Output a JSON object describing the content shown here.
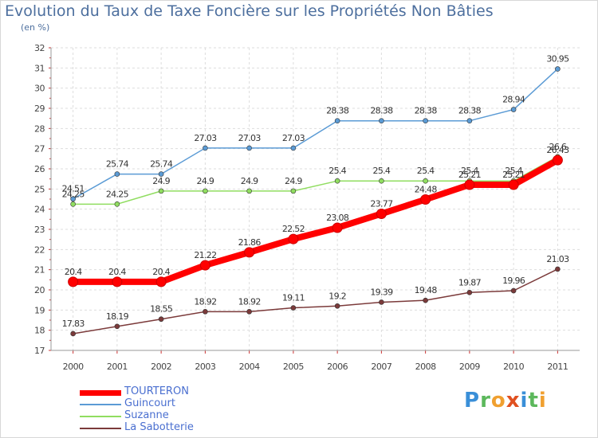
{
  "title": "Evolution du Taux de Taxe Foncière sur les Propriétés Non Bâties",
  "unit": "(en %)",
  "brand": {
    "letters": [
      "P",
      "r",
      "o",
      "x",
      "i",
      "t",
      "i"
    ],
    "colors": [
      "#3a8fd8",
      "#5cb85c",
      "#f0a030",
      "#e05020",
      "#3a8fd8",
      "#5cb85c",
      "#f0a030"
    ]
  },
  "chart_data": {
    "type": "line",
    "x": [
      "2000",
      "2001",
      "2002",
      "2003",
      "2004",
      "2005",
      "2006",
      "2007",
      "2008",
      "2009",
      "2010",
      "2011"
    ],
    "ylim": [
      17,
      32
    ],
    "yticks": [
      "17",
      "18",
      "19",
      "20",
      "21",
      "22",
      "23",
      "24",
      "25",
      "26",
      "27",
      "28",
      "29",
      "30",
      "31",
      "32"
    ],
    "grid": true,
    "series": [
      {
        "name": "TOURTERON",
        "color": "#ff0000",
        "values": [
          20.4,
          20.4,
          20.4,
          21.22,
          21.86,
          22.52,
          23.08,
          23.77,
          24.48,
          25.21,
          25.21,
          26.43
        ],
        "labels": [
          "20.4",
          "20.4",
          "20.4",
          "21.22",
          "21.86",
          "22.52",
          "23.08",
          "23.77",
          "24.48",
          "25.21",
          "25.21",
          "26.43"
        ]
      },
      {
        "name": "Guincourt",
        "color": "#5b9bd5",
        "values": [
          24.51,
          25.74,
          25.74,
          27.03,
          27.03,
          27.03,
          28.38,
          28.38,
          28.38,
          28.38,
          28.94,
          30.95
        ],
        "labels": [
          "24.51",
          "25.74",
          "25.74",
          "27.03",
          "27.03",
          "27.03",
          "28.38",
          "28.38",
          "28.38",
          "28.38",
          "28.94",
          "30.95"
        ]
      },
      {
        "name": "Suzanne",
        "color": "#90dd60",
        "values": [
          24.25,
          24.25,
          24.9,
          24.9,
          24.9,
          24.9,
          25.4,
          25.4,
          25.4,
          25.4,
          25.4,
          26.6
        ],
        "labels": [
          "24.25",
          "24.25",
          "24.9",
          "24.9",
          "24.9",
          "24.9",
          "25.4",
          "25.4",
          "25.4",
          "25.4",
          "25.4",
          "26.6"
        ]
      },
      {
        "name": "La Sabotterie",
        "color": "#7b3a3a",
        "values": [
          17.83,
          18.19,
          18.55,
          18.92,
          18.92,
          19.11,
          19.2,
          19.39,
          19.48,
          19.87,
          19.96,
          21.03
        ],
        "labels": [
          "17.83",
          "18.19",
          "18.55",
          "18.92",
          "18.92",
          "19.11",
          "19.2",
          "19.39",
          "19.48",
          "19.87",
          "19.96",
          "21.03"
        ]
      }
    ]
  }
}
